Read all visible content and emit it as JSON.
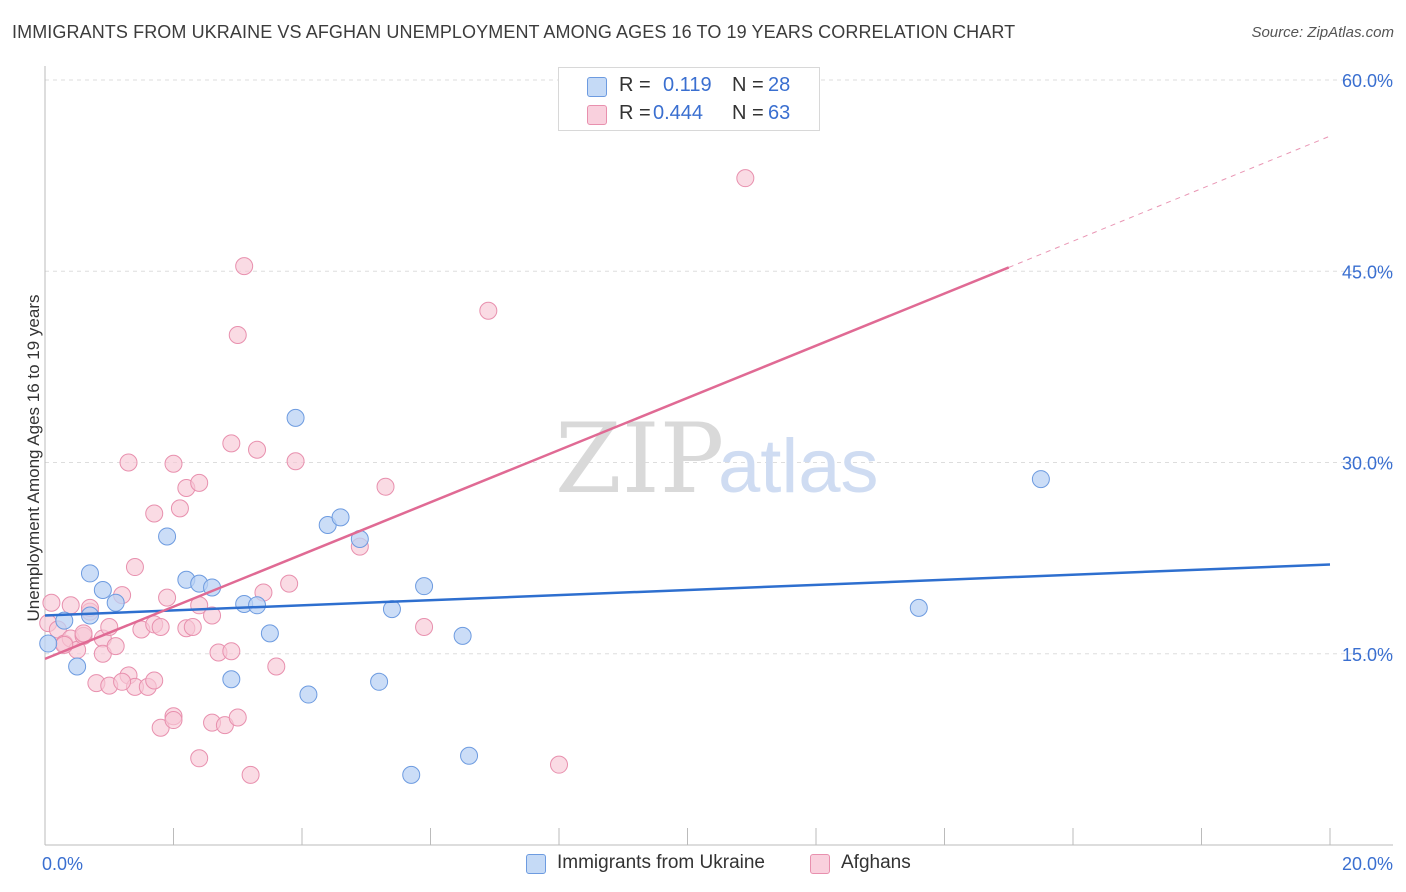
{
  "title": "IMMIGRANTS FROM UKRAINE VS AFGHAN UNEMPLOYMENT AMONG AGES 16 TO 19 YEARS CORRELATION CHART",
  "source": "Source: ZipAtlas.com",
  "watermark": {
    "zip": "ZIP",
    "atlas": "atlas"
  },
  "legend": {
    "rows": [
      {
        "r_label": "R =",
        "r_value": "0.119",
        "n_label": "N =",
        "n_value": "28"
      },
      {
        "r_label": "R =",
        "r_value": "0.444",
        "n_label": "N =",
        "n_value": "63"
      }
    ]
  },
  "colors": {
    "ukraine_fill": "#b9d2f4",
    "ukraine_stroke": "#6d9be0",
    "ukraine_line": "#2e6fcf",
    "afghan_fill": "#f7c7d6",
    "afghan_stroke": "#e890ae",
    "afghan_line": "#e06a94",
    "axis_label": "#3a6fd0",
    "grid": "#dddddd"
  },
  "chart_data": {
    "type": "scatter",
    "title": "IMMIGRANTS FROM UKRAINE VS AFGHAN UNEMPLOYMENT AMONG AGES 16 TO 19 YEARS CORRELATION CHART",
    "xlabel": "",
    "ylabel": "Unemployment Among Ages 16 to 19 years",
    "xlim": [
      0,
      20
    ],
    "ylim": [
      0,
      60
    ],
    "x_tick_labels": [
      "0.0%",
      "20.0%"
    ],
    "y_ticks": [
      15,
      30,
      45,
      60
    ],
    "y_tick_labels": [
      "15.0%",
      "30.0%",
      "45.0%",
      "60.0%"
    ],
    "grid": true,
    "legend_position": "top-center",
    "series": [
      {
        "name": "Immigrants from Ukraine",
        "points": [
          [
            0.05,
            15.8
          ],
          [
            0.3,
            17.6
          ],
          [
            0.5,
            14.0
          ],
          [
            0.7,
            18.0
          ],
          [
            0.7,
            21.3
          ],
          [
            0.9,
            20.0
          ],
          [
            1.1,
            19.0
          ],
          [
            1.9,
            24.2
          ],
          [
            2.2,
            20.8
          ],
          [
            2.4,
            20.5
          ],
          [
            2.6,
            20.2
          ],
          [
            2.9,
            13.0
          ],
          [
            3.1,
            18.9
          ],
          [
            3.3,
            18.8
          ],
          [
            3.5,
            16.6
          ],
          [
            3.9,
            33.5
          ],
          [
            4.1,
            11.8
          ],
          [
            4.4,
            25.1
          ],
          [
            4.6,
            25.7
          ],
          [
            4.9,
            24.0
          ],
          [
            5.2,
            12.8
          ],
          [
            5.4,
            18.5
          ],
          [
            5.7,
            5.5
          ],
          [
            5.9,
            20.3
          ],
          [
            6.5,
            16.4
          ],
          [
            6.6,
            7.0
          ],
          [
            13.6,
            18.6
          ],
          [
            15.5,
            28.7
          ]
        ],
        "trend": {
          "x": [
            0,
            20
          ],
          "y": [
            18.0,
            22.0
          ]
        }
      },
      {
        "name": "Afghans",
        "points": [
          [
            0.05,
            17.4
          ],
          [
            0.1,
            19.0
          ],
          [
            0.2,
            16.9
          ],
          [
            0.3,
            15.8
          ],
          [
            0.4,
            18.8
          ],
          [
            0.4,
            16.2
          ],
          [
            0.5,
            15.3
          ],
          [
            0.6,
            16.4
          ],
          [
            0.7,
            18.3
          ],
          [
            0.7,
            18.6
          ],
          [
            0.8,
            12.7
          ],
          [
            0.9,
            16.2
          ],
          [
            0.9,
            15.0
          ],
          [
            1.0,
            17.1
          ],
          [
            1.0,
            12.5
          ],
          [
            1.1,
            15.6
          ],
          [
            1.2,
            19.6
          ],
          [
            1.3,
            13.3
          ],
          [
            1.3,
            30.0
          ],
          [
            1.4,
            21.8
          ],
          [
            1.4,
            12.4
          ],
          [
            1.5,
            16.9
          ],
          [
            1.6,
            12.4
          ],
          [
            1.7,
            12.9
          ],
          [
            1.7,
            17.3
          ],
          [
            1.7,
            26.0
          ],
          [
            1.8,
            9.2
          ],
          [
            1.8,
            17.1
          ],
          [
            1.9,
            19.4
          ],
          [
            2.0,
            10.1
          ],
          [
            2.0,
            9.8
          ],
          [
            2.0,
            29.9
          ],
          [
            2.1,
            26.4
          ],
          [
            2.2,
            17.0
          ],
          [
            2.2,
            28.0
          ],
          [
            2.3,
            17.1
          ],
          [
            2.4,
            6.8
          ],
          [
            2.4,
            28.4
          ],
          [
            2.4,
            18.8
          ],
          [
            2.6,
            9.6
          ],
          [
            2.6,
            18.0
          ],
          [
            2.7,
            15.1
          ],
          [
            2.8,
            9.4
          ],
          [
            2.9,
            31.5
          ],
          [
            2.9,
            15.2
          ],
          [
            3.0,
            40.0
          ],
          [
            3.0,
            10.0
          ],
          [
            3.1,
            45.4
          ],
          [
            3.2,
            5.5
          ],
          [
            3.3,
            31.0
          ],
          [
            3.4,
            19.8
          ],
          [
            3.6,
            14.0
          ],
          [
            3.8,
            20.5
          ],
          [
            3.9,
            30.1
          ],
          [
            4.9,
            23.4
          ],
          [
            5.3,
            28.1
          ],
          [
            5.9,
            17.1
          ],
          [
            6.9,
            41.9
          ],
          [
            8.0,
            6.3
          ],
          [
            10.9,
            52.3
          ],
          [
            0.3,
            15.7
          ],
          [
            0.6,
            16.6
          ],
          [
            1.2,
            12.8
          ]
        ],
        "trend": {
          "x": [
            0,
            15
          ],
          "y": [
            14.6,
            45.3
          ]
        },
        "trend_extension": {
          "x": [
            15,
            20
          ],
          "y": [
            45.3,
            55.6
          ]
        }
      }
    ]
  },
  "bottom_legend": [
    {
      "label": "Immigrants from Ukraine"
    },
    {
      "label": "Afghans"
    }
  ]
}
